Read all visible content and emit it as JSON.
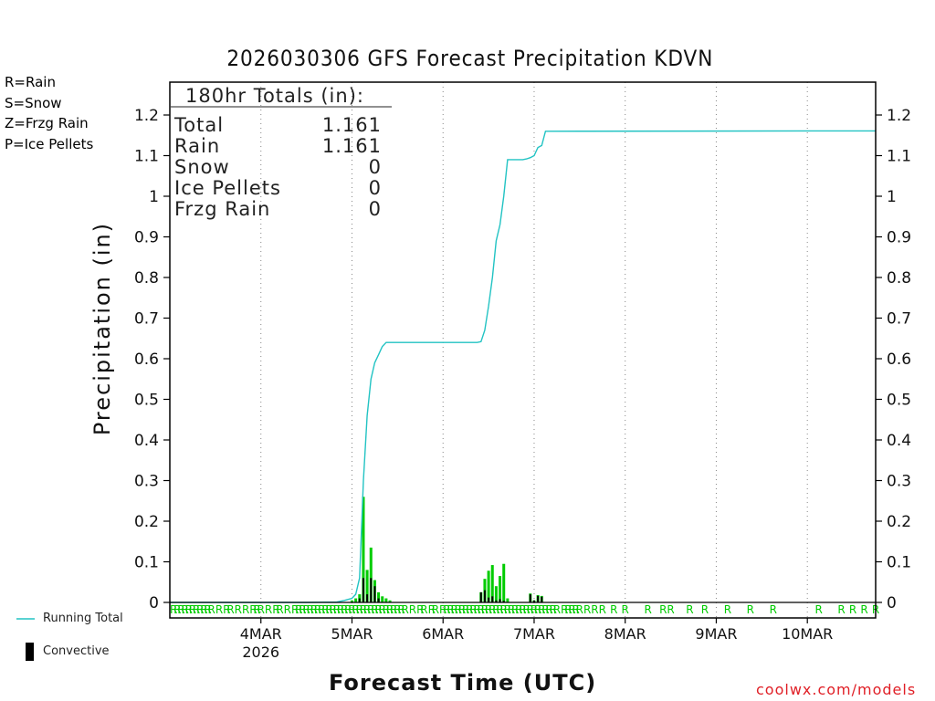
{
  "chart_data": {
    "type": "bar+line",
    "title": "2026030306 GFS Forecast Precipitation KDVN",
    "xlabel": "Forecast Time (UTC)",
    "ylabel": "Precipitation (in)",
    "ylim": [
      0,
      1.25
    ],
    "y_ticks": [
      "0",
      "0.1",
      "0.2",
      "0.3",
      "0.4",
      "0.5",
      "0.6",
      "0.7",
      "0.8",
      "0.9",
      "1",
      "1.1",
      "1.2"
    ],
    "x_range_hours": [
      -6,
      180
    ],
    "x_ticks": [
      {
        "h": 18,
        "label": "4MAR",
        "sub": "2026"
      },
      {
        "h": 42,
        "label": "5MAR",
        "sub": ""
      },
      {
        "h": 66,
        "label": "6MAR",
        "sub": ""
      },
      {
        "h": 90,
        "label": "7MAR",
        "sub": ""
      },
      {
        "h": 114,
        "label": "8MAR",
        "sub": ""
      },
      {
        "h": 138,
        "label": "9MAR",
        "sub": ""
      },
      {
        "h": 162,
        "label": "10MAR",
        "sub": ""
      }
    ],
    "running_total": {
      "name": "Running Total",
      "color": "#22c3c3",
      "points": [
        [
          -6,
          0
        ],
        [
          30,
          0
        ],
        [
          38,
          0.001
        ],
        [
          40,
          0.005
        ],
        [
          42,
          0.01
        ],
        [
          43,
          0.02
        ],
        [
          44,
          0.06
        ],
        [
          45,
          0.3
        ],
        [
          46,
          0.46
        ],
        [
          47,
          0.55
        ],
        [
          48,
          0.59
        ],
        [
          49,
          0.61
        ],
        [
          50,
          0.63
        ],
        [
          51,
          0.64
        ],
        [
          57,
          0.64
        ],
        [
          66,
          0.64
        ],
        [
          75,
          0.64
        ],
        [
          76,
          0.642
        ],
        [
          77,
          0.67
        ],
        [
          78,
          0.73
        ],
        [
          79,
          0.8
        ],
        [
          80,
          0.89
        ],
        [
          81,
          0.93
        ],
        [
          82,
          1.0
        ],
        [
          83,
          1.09
        ],
        [
          84,
          1.09
        ],
        [
          87,
          1.09
        ],
        [
          88,
          1.092
        ],
        [
          89,
          1.095
        ],
        [
          90,
          1.1
        ],
        [
          91,
          1.12
        ],
        [
          92,
          1.125
        ],
        [
          93,
          1.16
        ],
        [
          180,
          1.161
        ]
      ]
    },
    "total_bars": {
      "name": "Total",
      "color": "#00cc00",
      "points": [
        [
          42,
          0.005
        ],
        [
          43,
          0.01
        ],
        [
          44,
          0.02
        ],
        [
          45,
          0.26
        ],
        [
          46,
          0.08
        ],
        [
          47,
          0.135
        ],
        [
          48,
          0.055
        ],
        [
          49,
          0.025
        ],
        [
          50,
          0.015
        ],
        [
          51,
          0.01
        ],
        [
          52,
          0.005
        ],
        [
          76,
          0.025
        ],
        [
          77,
          0.058
        ],
        [
          78,
          0.078
        ],
        [
          79,
          0.092
        ],
        [
          80,
          0.04
        ],
        [
          81,
          0.065
        ],
        [
          82,
          0.095
        ],
        [
          83,
          0.01
        ],
        [
          89,
          0.022
        ],
        [
          90,
          0.005
        ],
        [
          91,
          0.018
        ],
        [
          92,
          0.016
        ]
      ]
    },
    "convective_bars": {
      "name": "Convective",
      "color": "#000000",
      "points": [
        [
          44,
          0.01
        ],
        [
          45,
          0.06
        ],
        [
          46,
          0.02
        ],
        [
          47,
          0.06
        ],
        [
          48,
          0.04
        ],
        [
          49,
          0.01
        ],
        [
          76,
          0.025
        ],
        [
          77,
          0.03
        ],
        [
          78,
          0.012
        ],
        [
          79,
          0.015
        ],
        [
          80,
          0.005
        ],
        [
          81,
          0.008
        ],
        [
          82,
          0.004
        ],
        [
          89,
          0.02
        ],
        [
          90,
          0.005
        ],
        [
          91,
          0.016
        ],
        [
          92,
          0.014
        ]
      ]
    },
    "ptype_markers_hours": [
      -5,
      -4,
      -3,
      -2,
      -1,
      0,
      1,
      2,
      3,
      4,
      5,
      7,
      9,
      10,
      12,
      14,
      16,
      17,
      18,
      20,
      22,
      23,
      25,
      27,
      28,
      29,
      30,
      31,
      32,
      33,
      34,
      35,
      36,
      37,
      38,
      39,
      40,
      41,
      42,
      43,
      44,
      45,
      46,
      47,
      48,
      49,
      50,
      51,
      52,
      53,
      54,
      55,
      56,
      58,
      60,
      61,
      63,
      64,
      66,
      67,
      68,
      69,
      70,
      71,
      72,
      73,
      74,
      75,
      76,
      77,
      78,
      79,
      80,
      81,
      82,
      83,
      84,
      85,
      86,
      87,
      88,
      89,
      90,
      91,
      92,
      93,
      94,
      95,
      96,
      98,
      99,
      100,
      101,
      102,
      104,
      106,
      108,
      111,
      114,
      120,
      124,
      126,
      131,
      135,
      141,
      147,
      153,
      165,
      171,
      174,
      177,
      180
    ],
    "ptype_marker_text": "R",
    "ptype_marker_color": "#00cc00",
    "legend_left": [
      {
        "text": "R=Rain",
        "color": "#22dd22"
      },
      {
        "text": "S=Snow",
        "color": "#3355ff"
      },
      {
        "text": "Z=Frzg Rain",
        "color": "#f08a30"
      },
      {
        "text": "P=Ice Pellets",
        "color": "#e0208a"
      }
    ],
    "totals_table": {
      "header": "180hr Totals (in):",
      "rows": [
        {
          "label": "Total",
          "value": "1.161"
        },
        {
          "label": "Rain",
          "value": "1.161"
        },
        {
          "label": "Snow",
          "value": "0"
        },
        {
          "label": "Ice Pellets",
          "value": "0"
        },
        {
          "label": "Frzg Rain",
          "value": "0"
        }
      ]
    },
    "legend_bottom": {
      "running_total": "Running Total",
      "convective": "Convective"
    },
    "credit": "coolwx.com/models"
  }
}
